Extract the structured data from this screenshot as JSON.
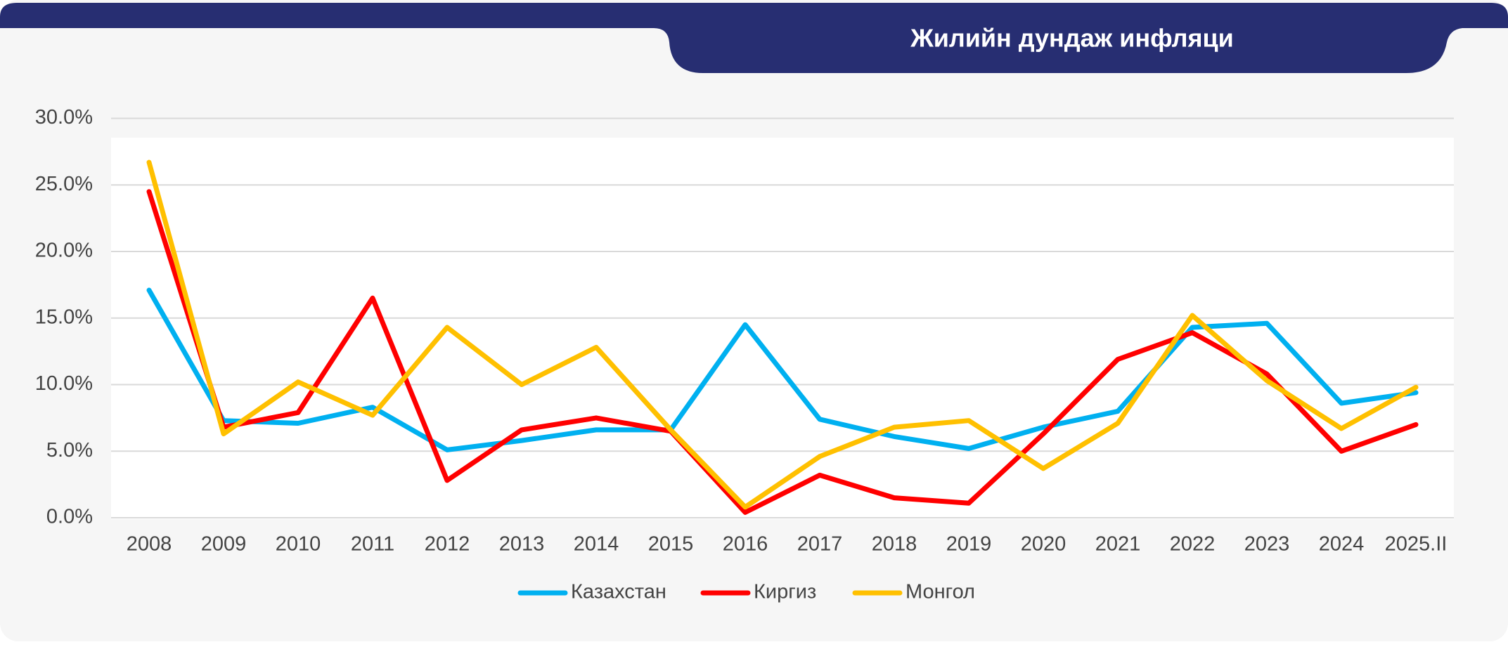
{
  "colors": {
    "banner": "#272e72",
    "card": "#f6f6f6",
    "plot_bg": "#ffffff",
    "grid": "#d9d9d9",
    "axis_text": "#444444",
    "title_text": "#ffffff"
  },
  "chart_data": {
    "type": "line",
    "title": "Жилийн дундаж инфляци",
    "xlabel": "",
    "ylabel": "",
    "categories": [
      "2008",
      "2009",
      "2010",
      "2011",
      "2012",
      "2013",
      "2014",
      "2015",
      "2016",
      "2017",
      "2018",
      "2019",
      "2020",
      "2021",
      "2022",
      "2023",
      "2024",
      "2025.II"
    ],
    "y_ticks": [
      "30.0%",
      "25.0%",
      "20.0%",
      "15.0%",
      "10.0%",
      "5.0%",
      "0.0%"
    ],
    "ylim": [
      0,
      30
    ],
    "grid": true,
    "legend_position": "bottom",
    "series": [
      {
        "name": "Казахстан",
        "color": "#00b0f0",
        "values": [
          17.1,
          7.3,
          7.1,
          8.3,
          5.1,
          5.8,
          6.6,
          6.6,
          14.5,
          7.4,
          6.1,
          5.2,
          6.8,
          8.0,
          14.3,
          14.6,
          8.6,
          9.4
        ]
      },
      {
        "name": "Киргиз",
        "color": "#ff0000",
        "values": [
          24.5,
          6.8,
          7.9,
          16.5,
          2.8,
          6.6,
          7.5,
          6.5,
          0.4,
          3.2,
          1.5,
          1.1,
          6.3,
          11.9,
          13.9,
          10.8,
          5.0,
          7.0
        ]
      },
      {
        "name": "Монгол",
        "color": "#ffc000",
        "values": [
          26.7,
          6.3,
          10.2,
          7.7,
          14.3,
          10.0,
          12.8,
          6.6,
          0.8,
          4.6,
          6.8,
          7.3,
          3.7,
          7.1,
          15.2,
          10.3,
          6.7,
          9.8
        ]
      }
    ]
  }
}
